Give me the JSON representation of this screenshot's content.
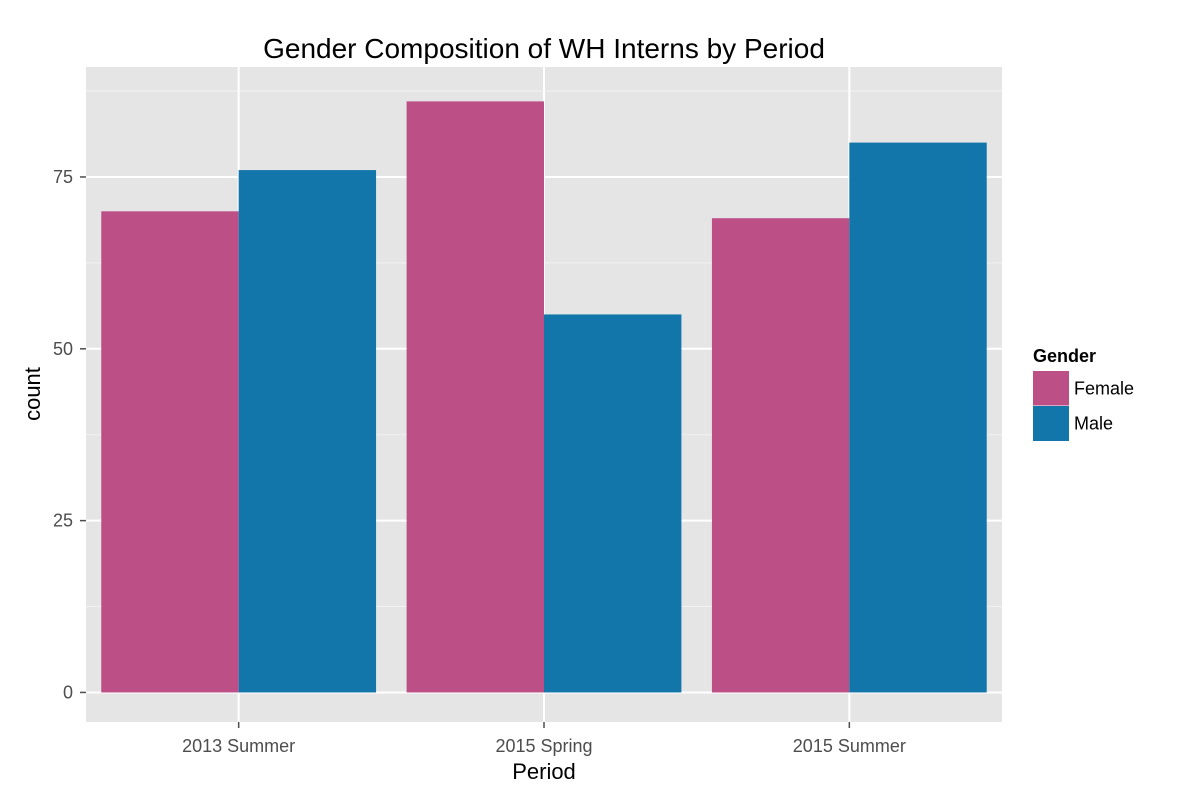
{
  "chart_data": {
    "type": "bar",
    "title": "Gender Composition of WH Interns by Period",
    "xlabel": "Period",
    "ylabel": "count",
    "categories": [
      "2013 Summer",
      "2015 Spring",
      "2015 Summer"
    ],
    "series": [
      {
        "name": "Female",
        "values": [
          70,
          86,
          69
        ],
        "color": "#bc4f86"
      },
      {
        "name": "Male",
        "values": [
          76,
          55,
          80
        ],
        "color": "#1276aa"
      }
    ],
    "ylim": [
      -4.3,
      91
    ],
    "yticks": [
      0,
      25,
      50,
      75
    ],
    "grid": true,
    "legend": {
      "title": "Gender",
      "position": "right"
    },
    "colors": {
      "panel_background": "#e5e5e5",
      "grid_major": "#ffffff",
      "grid_minor": "#f2f2f2",
      "tick_text": "#4d4d4d",
      "axis_title": "#000000"
    }
  }
}
